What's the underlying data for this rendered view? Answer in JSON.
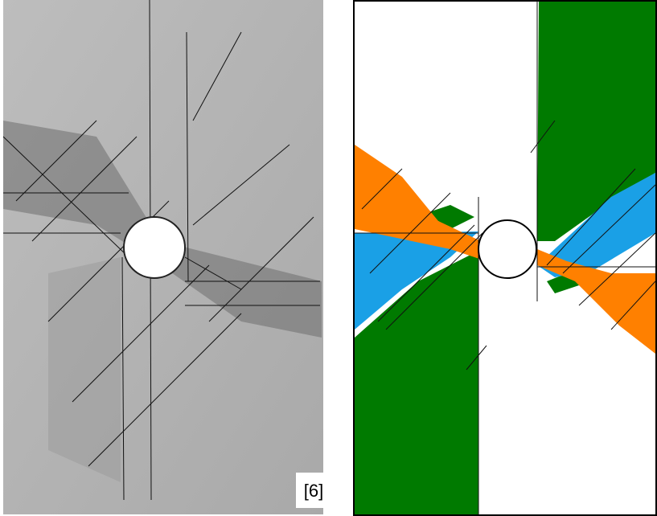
{
  "figure": {
    "reference_label": "[6]"
  }
}
